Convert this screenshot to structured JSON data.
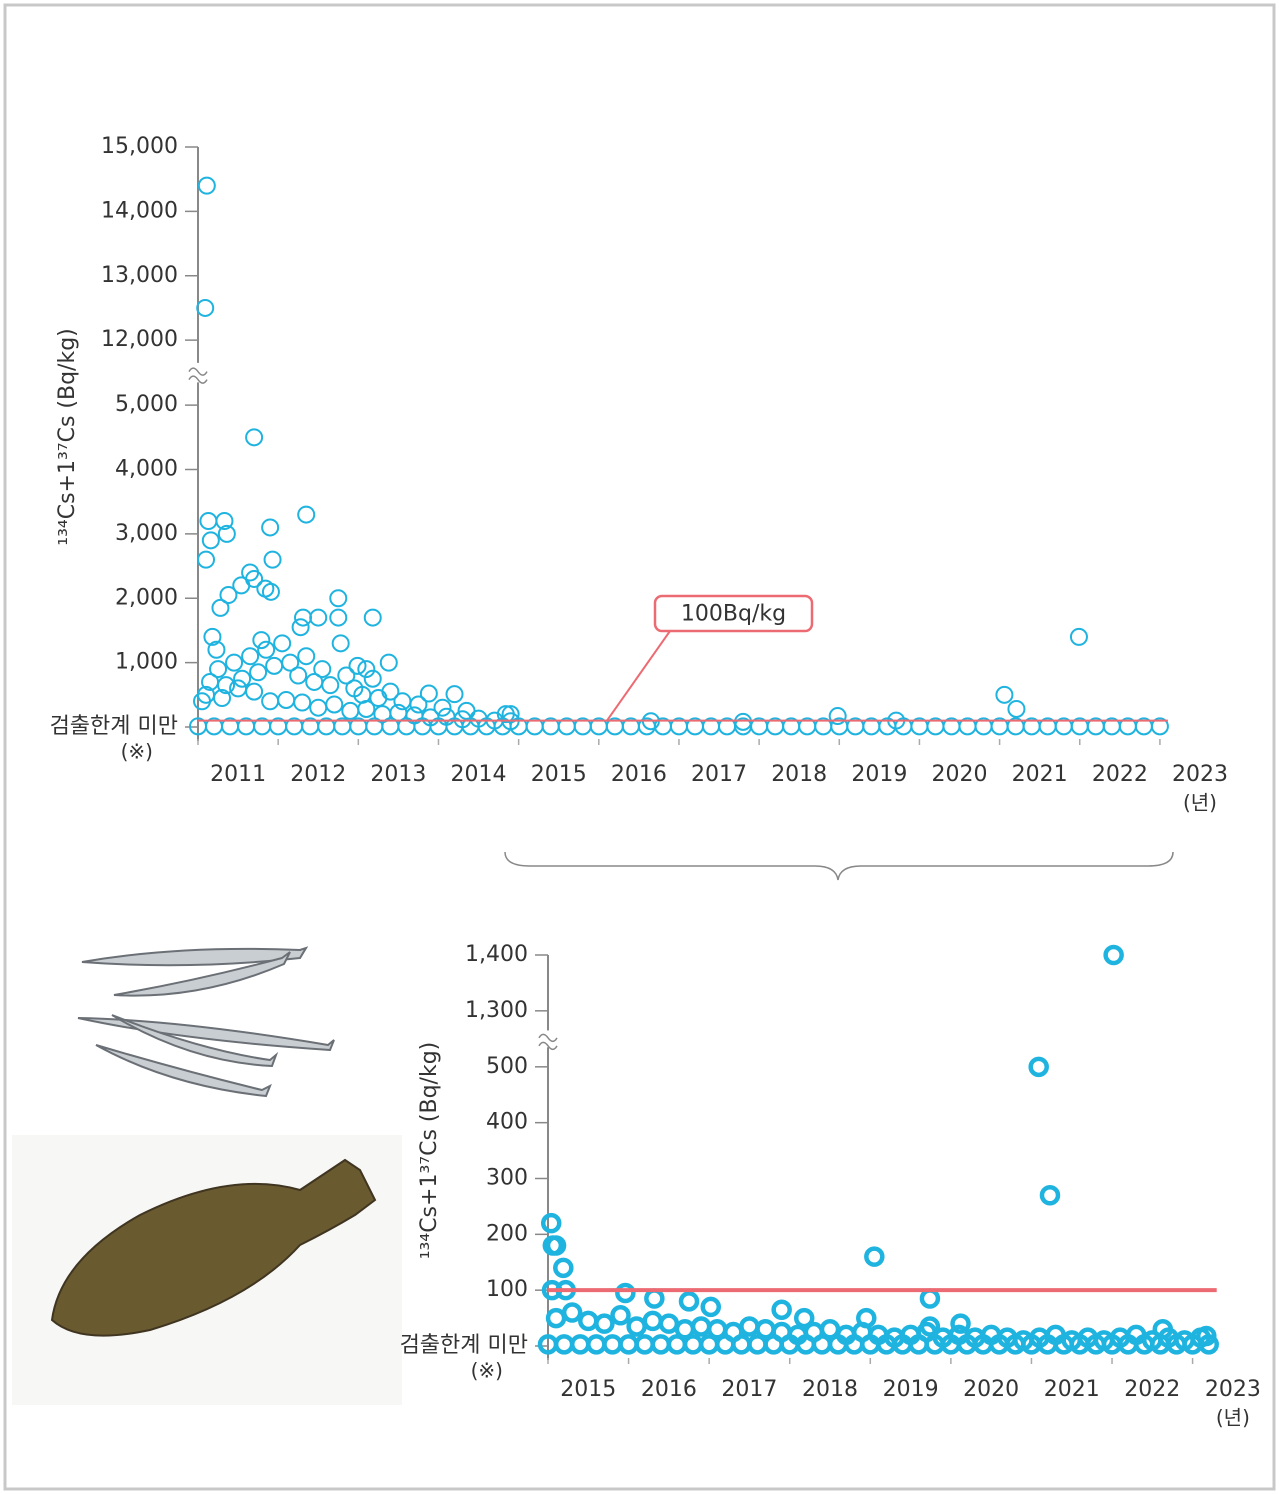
{
  "chart_data": [
    {
      "type": "scatter",
      "ylabel": "¹³⁴Cs+1³⁷Cs (Bq/kg)",
      "color": "#1fb3df",
      "threshold": 100,
      "threshold_color": "#ec6a72",
      "annotation": "100Bq/kg",
      "ylim": [
        0,
        15000
      ],
      "ybreak": [
        5000,
        12000
      ],
      "yticks": [
        {
          "value": 0,
          "label": "검출한계 미만"
        },
        {
          "value": 1000,
          "label": "1,000"
        },
        {
          "value": 2000,
          "label": "2,000"
        },
        {
          "value": 3000,
          "label": "3,000"
        },
        {
          "value": 4000,
          "label": "4,000"
        },
        {
          "value": 5000,
          "label": "5,000"
        },
        {
          "value": 12000,
          "label": "12,000"
        },
        {
          "value": 13000,
          "label": "13,000"
        },
        {
          "value": 14000,
          "label": "14,000"
        },
        {
          "value": 15000,
          "label": "15,000"
        }
      ],
      "ytick_note": "(※)",
      "xlim": [
        2011,
        2023.5
      ],
      "xticks": [
        2011,
        2012,
        2013,
        2014,
        2015,
        2016,
        2017,
        2018,
        2019,
        2020,
        2021,
        2022,
        2023
      ],
      "x_unit": "(년)",
      "x": [
        2011.11,
        2011.09,
        2011.7,
        2011.13,
        2011.33,
        2011.16,
        2011.36,
        2011.1,
        2011.9,
        2011.93,
        2012.35,
        2011.65,
        2011.7,
        2011.54,
        2011.38,
        2011.28,
        2011.84,
        2011.91,
        2012.75,
        2013.18,
        2012.5,
        2012.31,
        2012.28,
        2012.75,
        2012.78,
        2013.38,
        2011.18,
        2011.23,
        2011.79,
        2012.99,
        2013.1,
        2013.18,
        2013.4,
        2013.88,
        2014.2,
        2014.84,
        2014.9,
        2018.98,
        2021.06,
        2021.21,
        2021.99,
        2019.71,
        2016.65,
        2017.8,
        2011.25,
        2011.45,
        2011.55,
        2011.65,
        2011.75,
        2011.85,
        2011.95,
        2012.05,
        2012.15,
        2012.25,
        2012.45,
        2012.55,
        2012.65,
        2012.85,
        2012.95,
        2013.05,
        2013.25,
        2013.55,
        2013.75,
        2014.05,
        2014.35,
        2011.35,
        2011.15,
        2012.35,
        2011.05,
        2011.1,
        2011.3,
        2011.5,
        2011.7,
        2011.9,
        2012.1,
        2012.3,
        2012.5,
        2012.7,
        2012.9,
        2013.1,
        2013.3,
        2013.5,
        2013.7,
        2013.9,
        2014.1,
        2014.3,
        2014.5,
        2014.7,
        2014.9,
        2011,
        2011.2,
        2011.4,
        2011.6,
        2011.8,
        2012,
        2012.2,
        2012.4,
        2012.6,
        2012.8,
        2013,
        2013.2,
        2013.4,
        2013.6,
        2013.8,
        2014,
        2014.2,
        2014.4,
        2014.6,
        2014.8,
        2015,
        2015.2,
        2015.4,
        2015.6,
        2015.8,
        2016,
        2016.2,
        2016.4,
        2016.6,
        2016.8,
        2017,
        2017.2,
        2017.4,
        2017.6,
        2017.8,
        2018,
        2018.2,
        2018.4,
        2018.6,
        2018.8,
        2019,
        2019.2,
        2019.4,
        2019.6,
        2019.8,
        2020,
        2020.2,
        2020.4,
        2020.6,
        2020.8,
        2021,
        2021.2,
        2021.4,
        2021.6,
        2021.8,
        2022,
        2022.2,
        2022.4,
        2022.6,
        2022.8,
        2023
      ],
      "values": [
        14400,
        12500,
        4500,
        3200,
        3200,
        2900,
        3000,
        2600,
        3100,
        2600,
        3300,
        2400,
        2300,
        2200,
        2050,
        1850,
        2150,
        2100,
        2000,
        1700,
        1700,
        1700,
        1550,
        1700,
        1300,
        1000,
        1400,
        1200,
        1350,
        950,
        900,
        750,
        550,
        520,
        510,
        200,
        200,
        170,
        500,
        280,
        1400,
        100,
        90,
        80,
        900,
        1000,
        750,
        1100,
        850,
        1200,
        950,
        1300,
        1000,
        800,
        700,
        900,
        650,
        800,
        600,
        500,
        450,
        400,
        350,
        300,
        250,
        650,
        700,
        1100,
        400,
        500,
        450,
        600,
        550,
        400,
        420,
        380,
        300,
        350,
        250,
        280,
        200,
        220,
        180,
        150,
        160,
        120,
        130,
        100,
        90,
        10,
        10,
        10,
        10,
        10,
        10,
        10,
        10,
        10,
        10,
        10,
        10,
        10,
        10,
        10,
        10,
        10,
        10,
        10,
        10,
        10,
        10,
        10,
        10,
        10,
        10,
        10,
        10,
        10,
        10,
        10,
        10,
        10,
        10,
        10,
        10,
        10,
        10,
        10,
        10,
        10,
        10,
        10,
        10,
        10,
        10,
        10,
        10,
        10,
        10,
        10,
        10,
        10,
        10,
        10,
        10,
        10,
        10,
        10,
        10,
        10
      ]
    },
    {
      "type": "scatter",
      "ylabel": "¹³⁴Cs+1³⁷Cs (Bq/kg)",
      "color": "#1fb3df",
      "threshold": 100,
      "threshold_color": "#ec6a72",
      "ylim": [
        0,
        1400
      ],
      "ybreak": [
        500,
        1300
      ],
      "yticks": [
        {
          "value": 0,
          "label": "검출한계 미만"
        },
        100,
        200,
        300,
        400,
        500,
        {
          "value": 1300,
          "label": "1,300"
        },
        {
          "value": 1400,
          "label": "1,400"
        }
      ],
      "ytick_note": "(※)",
      "xlim": [
        2015,
        2023.7
      ],
      "xticks": [
        2015,
        2016,
        2017,
        2018,
        2019,
        2020,
        2021,
        2022,
        2023
      ],
      "x_unit": "(년)",
      "x": [
        2022.02,
        2021.09,
        2021.23,
        2019.05,
        2015.04,
        2015.06,
        2015.1,
        2015.19,
        2015.05,
        2015.22,
        2015.96,
        2016.32,
        2016.75,
        2017.02,
        2017.9,
        2018.18,
        2018.95,
        2019.74,
        2019.74,
        2020.12,
        2022.63,
        2023.17,
        2015,
        2015.2,
        2015.4,
        2015.6,
        2015.8,
        2016,
        2016.2,
        2016.4,
        2016.6,
        2016.8,
        2017,
        2017.2,
        2017.4,
        2017.6,
        2017.8,
        2018,
        2018.2,
        2018.4,
        2018.6,
        2018.8,
        2019,
        2019.2,
        2019.4,
        2019.6,
        2019.8,
        2020,
        2020.2,
        2020.4,
        2020.6,
        2020.8,
        2021,
        2021.2,
        2021.4,
        2021.6,
        2021.8,
        2022,
        2022.2,
        2022.4,
        2022.6,
        2022.8,
        2023,
        2023.2,
        2015.1,
        2015.3,
        2015.5,
        2015.7,
        2015.9,
        2016.1,
        2016.3,
        2016.5,
        2016.7,
        2016.9,
        2017.1,
        2017.3,
        2017.5,
        2017.7,
        2017.9,
        2018.1,
        2018.3,
        2018.5,
        2018.7,
        2018.9,
        2019.1,
        2019.3,
        2019.5,
        2019.7,
        2019.9,
        2020.1,
        2020.3,
        2020.5,
        2020.7,
        2020.9,
        2021.1,
        2021.3,
        2021.5,
        2021.7,
        2021.9,
        2022.1,
        2022.3,
        2022.5,
        2022.7,
        2022.9,
        2023.1
      ],
      "values": [
        1400,
        500,
        270,
        160,
        220,
        180,
        180,
        140,
        100,
        100,
        95,
        85,
        80,
        70,
        65,
        50,
        50,
        85,
        35,
        40,
        30,
        18,
        3,
        3,
        3,
        3,
        3,
        3,
        3,
        3,
        3,
        3,
        3,
        3,
        3,
        3,
        3,
        3,
        3,
        3,
        3,
        3,
        3,
        3,
        3,
        3,
        3,
        3,
        3,
        3,
        3,
        3,
        3,
        3,
        3,
        3,
        3,
        3,
        3,
        3,
        3,
        3,
        3,
        3,
        50,
        60,
        45,
        40,
        55,
        35,
        45,
        40,
        30,
        35,
        30,
        25,
        35,
        30,
        25,
        20,
        25,
        30,
        20,
        25,
        20,
        15,
        20,
        25,
        15,
        20,
        15,
        20,
        15,
        10,
        15,
        20,
        10,
        15,
        10,
        15,
        20,
        10,
        15,
        10,
        15
      ]
    }
  ]
}
